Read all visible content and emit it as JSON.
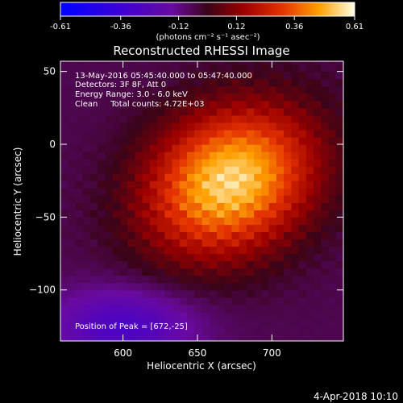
{
  "colorbar": {
    "ticks": [
      "-0.61",
      "-0.36",
      "-0.12",
      "0.12",
      "0.36",
      "0.61"
    ],
    "tick_values": [
      -0.61,
      -0.36,
      -0.12,
      0.12,
      0.36,
      0.61
    ],
    "range": [
      -0.61,
      0.61
    ],
    "unit_label": "(photons cm⁻² s⁻¹ asec⁻²)"
  },
  "chart_data": {
    "type": "heatmap",
    "title": "Reconstructed RHESSI Image",
    "xlabel": "Heliocentric X (arcsec)",
    "ylabel": "Heliocentric Y (arcsec)",
    "xlim": [
      558,
      748
    ],
    "ylim": [
      -135,
      57
    ],
    "xticks": [
      600,
      650,
      700
    ],
    "yticks": [
      50,
      0,
      -50,
      -100
    ],
    "peak": [
      672,
      -25
    ],
    "peak_value": 0.61,
    "annotations": [
      "13-May-2016 05:45:40.000 to 05:47:40.000",
      "Detectors: 3F 8F, Att 0",
      "Energy Range: 3.0 - 6.0 keV",
      "Clean     Total counts: 4.72E+03"
    ],
    "peak_label": "Position of Peak = [672,-25]"
  },
  "footer": {
    "timestamp": "4-Apr-2018 10:10"
  }
}
